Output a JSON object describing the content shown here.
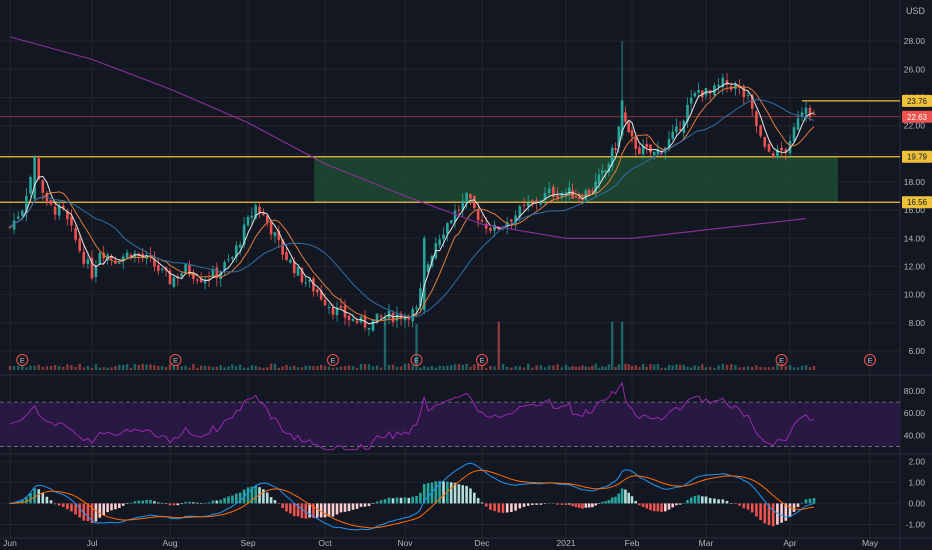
{
  "currency": "USD",
  "colors": {
    "background": "#131722",
    "grid": "#2a2e39",
    "up": "#26a69a",
    "down": "#ef5350",
    "hline": "#f0c23a",
    "zone": "#1e4b33",
    "ma_white": "#e8e8e8",
    "ma_orange": "#e07b39",
    "ma_blue": "#2f6fa8",
    "ma_purple": "#8e2fa0",
    "rsi_line": "#9c27b0",
    "rsi_band": "#2a1a45",
    "macd_line": "#2196f3",
    "signal_line": "#ff6d00",
    "price_line": "#ef5350"
  },
  "chart_data": [
    {
      "type": "candlestick",
      "panel": "price",
      "x_labels": [
        "Jun",
        "Jul",
        "Aug",
        "Sep",
        "Oct",
        "Nov",
        "Dec",
        "2021",
        "Feb",
        "Mar",
        "Apr",
        "May"
      ],
      "y_ticks": [
        "6.00",
        "8.00",
        "10.00",
        "12.00",
        "14.00",
        "16.00",
        "18.00",
        "20.00",
        "22.00",
        "24.00",
        "26.00",
        "28.00"
      ],
      "ylim": [
        5.5,
        29.5
      ],
      "earnings_marker_label": "E",
      "earnings_months": [
        0.15,
        2.07,
        4.1,
        5.15,
        6.0,
        9.9,
        11.3
      ],
      "horizontal_lines": [
        {
          "value": 23.76,
          "label": "23.76"
        },
        {
          "value": 19.79,
          "label": "19.79"
        },
        {
          "value": 16.56,
          "label": "16.56"
        }
      ],
      "last_price": {
        "value": 22.63,
        "label": "22.63"
      },
      "zone": {
        "from_month": 3.86,
        "to_month": 10.6,
        "low": 16.56,
        "high": 19.79
      },
      "price_path": [
        [
          0.0,
          14.8
        ],
        [
          0.15,
          16.2
        ],
        [
          0.3,
          19.5
        ],
        [
          0.45,
          16.3
        ],
        [
          0.65,
          15.8
        ],
        [
          0.85,
          13.2
        ],
        [
          1.0,
          11.5
        ],
        [
          1.1,
          13.2
        ],
        [
          1.3,
          12.5
        ],
        [
          1.5,
          13.0
        ],
        [
          1.75,
          12.3
        ],
        [
          2.0,
          11.0
        ],
        [
          2.2,
          11.8
        ],
        [
          2.4,
          11.2
        ],
        [
          2.6,
          11.5
        ],
        [
          2.8,
          12.6
        ],
        [
          2.95,
          14.6
        ],
        [
          3.1,
          16.3
        ],
        [
          3.25,
          15.2
        ],
        [
          3.45,
          13.0
        ],
        [
          3.7,
          11.2
        ],
        [
          3.9,
          10.2
        ],
        [
          4.1,
          9.0
        ],
        [
          4.3,
          8.3
        ],
        [
          4.5,
          7.9
        ],
        [
          4.75,
          8.4
        ],
        [
          5.0,
          8.6
        ],
        [
          5.15,
          8.8
        ],
        [
          5.25,
          11.5
        ],
        [
          5.4,
          13.8
        ],
        [
          5.6,
          15.5
        ],
        [
          5.8,
          16.8
        ],
        [
          6.0,
          15.2
        ],
        [
          6.15,
          14.6
        ],
        [
          6.35,
          15.5
        ],
        [
          6.6,
          16.5
        ],
        [
          6.8,
          17.2
        ],
        [
          7.0,
          17.3
        ],
        [
          7.2,
          17.0
        ],
        [
          7.4,
          17.5
        ],
        [
          7.6,
          18.8
        ],
        [
          7.75,
          20.6
        ],
        [
          7.85,
          23.0
        ],
        [
          7.95,
          21.2
        ],
        [
          8.1,
          20.3
        ],
        [
          8.3,
          20.0
        ],
        [
          8.45,
          20.6
        ],
        [
          8.6,
          21.5
        ],
        [
          8.75,
          23.3
        ],
        [
          8.9,
          24.5
        ],
        [
          9.05,
          24.2
        ],
        [
          9.2,
          25.0
        ],
        [
          9.35,
          24.8
        ],
        [
          9.5,
          23.8
        ],
        [
          9.6,
          22.0
        ],
        [
          9.7,
          20.2
        ],
        [
          9.85,
          20.0
        ],
        [
          10.0,
          20.5
        ],
        [
          10.1,
          22.8
        ],
        [
          10.2,
          23.6
        ],
        [
          10.3,
          22.6
        ]
      ],
      "spikes": [
        [
          7.85,
          23.8,
          28.0,
          21.0
        ],
        [
          5.25,
          14.0,
          14.2,
          8.6
        ],
        [
          0.3,
          19.8,
          19.9,
          16.5
        ]
      ],
      "volume_spikes": [
        7.7,
        7.85,
        6.2,
        5.15,
        4.75
      ],
      "moving_averages": [
        {
          "key": "ma_white",
          "smooth": 4
        },
        {
          "key": "ma_orange",
          "smooth": 9
        },
        {
          "key": "ma_blue",
          "smooth": 22
        }
      ],
      "purple_ma": [
        [
          0.0,
          28.3
        ],
        [
          1.0,
          26.7
        ],
        [
          2.0,
          24.6
        ],
        [
          3.0,
          22.2
        ],
        [
          4.0,
          19.3
        ],
        [
          5.0,
          17.0
        ],
        [
          6.0,
          15.0
        ],
        [
          7.0,
          14.0
        ],
        [
          8.0,
          14.0
        ],
        [
          9.0,
          14.6
        ],
        [
          10.2,
          15.4
        ]
      ]
    },
    {
      "type": "line",
      "panel": "rsi",
      "y_ticks": [
        "40.00",
        "60.00",
        "80.00"
      ],
      "ylim": [
        25,
        90
      ],
      "bands": [
        30,
        70
      ]
    },
    {
      "type": "bar",
      "panel": "macd",
      "y_ticks": [
        "-1.00",
        "0.00",
        "1.00",
        "2.00"
      ],
      "ylim": [
        -1.5,
        2.3
      ]
    }
  ]
}
